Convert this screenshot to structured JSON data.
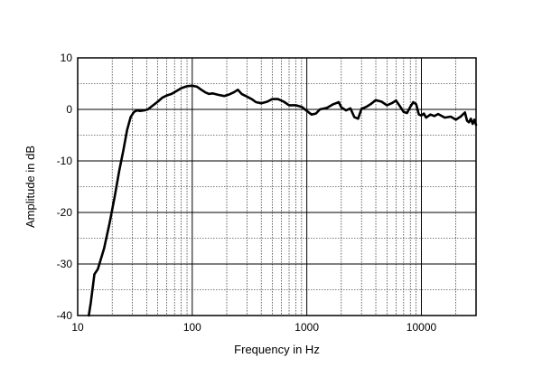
{
  "chart_data": {
    "type": "line",
    "title": "",
    "xlabel": "Frequency in Hz",
    "ylabel": "Amplitude in dB",
    "xscale": "log",
    "xlim": [
      10,
      30000
    ],
    "ylim": [
      -40,
      10
    ],
    "xticks": [
      10,
      100,
      1000,
      10000
    ],
    "xtick_labels": [
      "10",
      "100",
      "1000",
      "10000"
    ],
    "yticks": [
      10,
      0,
      -10,
      -20,
      -30,
      -40
    ],
    "ytick_labels": [
      "10",
      "0",
      "-10",
      "-20",
      "-30",
      "-40"
    ],
    "grid": true,
    "line_color": "#000000",
    "series": [
      {
        "x": [
          12.5,
          13,
          14,
          15,
          17,
          19,
          21,
          23,
          25,
          27,
          29,
          31,
          33,
          35,
          38,
          41,
          45,
          50,
          55,
          60,
          66,
          72,
          80,
          90,
          100,
          110,
          120,
          130,
          140,
          150,
          170,
          190,
          210,
          230,
          250,
          270,
          300,
          330,
          360,
          400,
          450,
          500,
          560,
          630,
          700,
          800,
          900,
          1000,
          1100,
          1200,
          1300,
          1500,
          1700,
          1900,
          2000,
          2200,
          2400,
          2600,
          2800,
          3000,
          3300,
          3600,
          4000,
          4500,
          5000,
          5500,
          6000,
          6500,
          7000,
          7500,
          8000,
          8500,
          9000,
          9500,
          10000,
          10500,
          11000,
          12000,
          13000,
          14000,
          16000,
          18000,
          20000,
          22000,
          24000,
          25000,
          26000,
          27000,
          28000,
          29000,
          30000
        ],
        "values": [
          -40,
          -37.5,
          -32,
          -31,
          -27,
          -22,
          -17,
          -12,
          -8,
          -4,
          -1.5,
          -0.5,
          -0.2,
          -0.3,
          -0.2,
          0,
          0.7,
          1.5,
          2.3,
          2.7,
          3.0,
          3.5,
          4.1,
          4.5,
          4.6,
          4.4,
          3.8,
          3.3,
          3.0,
          3.1,
          2.8,
          2.6,
          2.9,
          3.3,
          3.8,
          3.0,
          2.5,
          2.0,
          1.4,
          1.2,
          1.5,
          2.0,
          2.0,
          1.5,
          0.8,
          0.8,
          0.5,
          -0.3,
          -1.0,
          -0.8,
          0,
          0.3,
          1.0,
          1.4,
          0.4,
          -0.2,
          0.2,
          -1.5,
          -1.8,
          0.1,
          0.5,
          1.0,
          1.8,
          1.5,
          0.8,
          1.2,
          1.7,
          0.6,
          -0.5,
          -0.7,
          0.5,
          1.4,
          1.0,
          -1.0,
          -1.2,
          -0.8,
          -1.6,
          -1.0,
          -1.3,
          -0.9,
          -1.6,
          -1.4,
          -2.0,
          -1.4,
          -0.6,
          -2.2,
          -2.5,
          -1.8,
          -2.8,
          -2.0,
          -3.0
        ]
      }
    ]
  }
}
